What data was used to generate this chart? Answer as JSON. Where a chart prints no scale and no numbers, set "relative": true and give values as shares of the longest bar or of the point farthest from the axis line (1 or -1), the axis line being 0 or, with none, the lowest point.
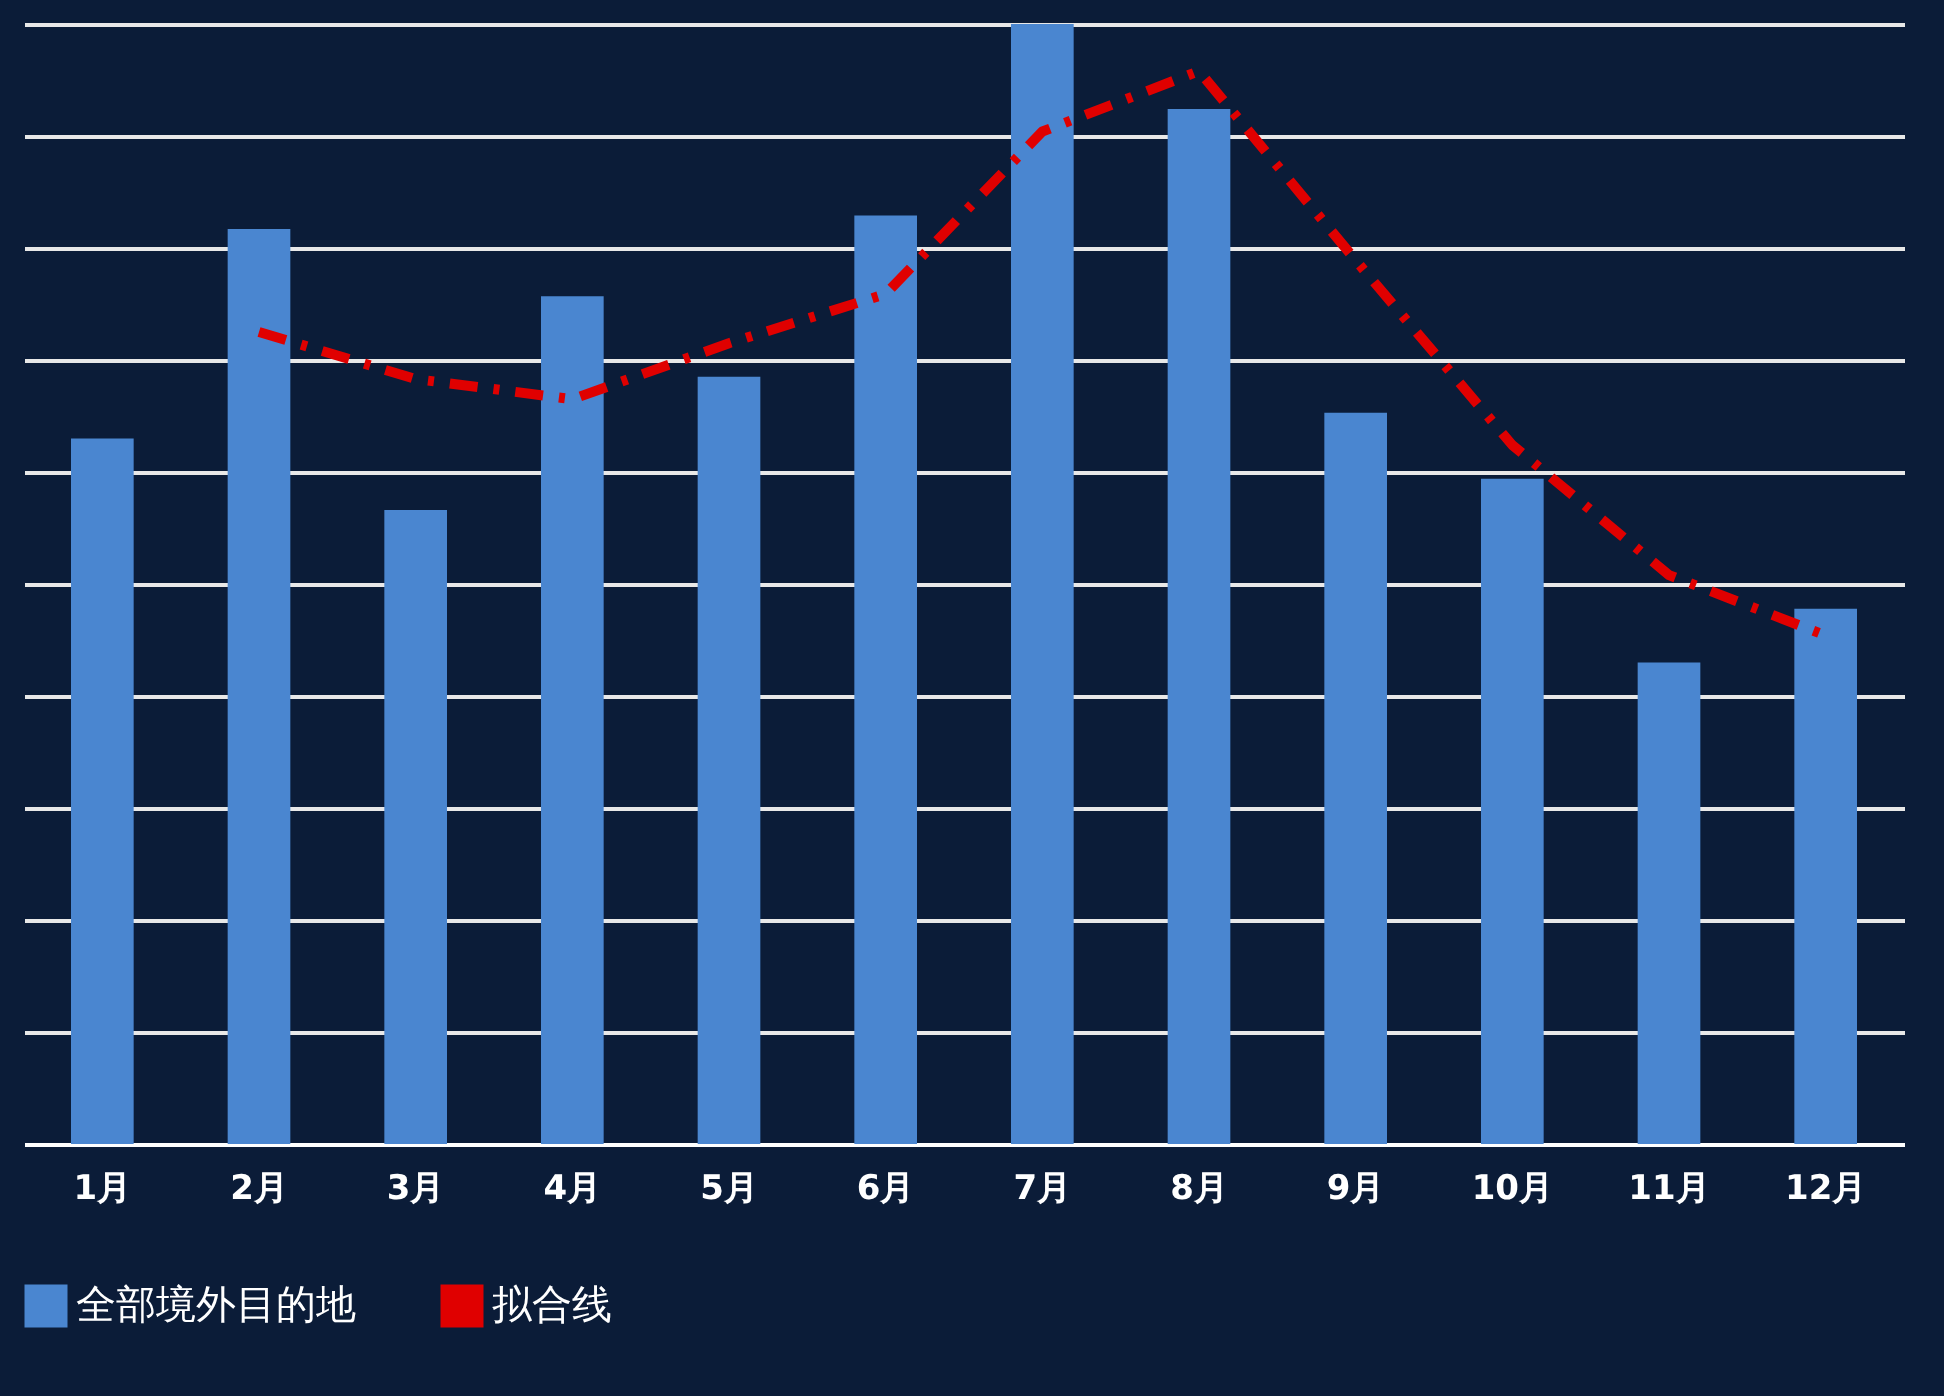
{
  "chart_data": {
    "type": "bar",
    "relative": true,
    "grid": "y",
    "legend": "bottom",
    "categories": [
      "1月",
      "2月",
      "3月",
      "4月",
      "5月",
      "6月",
      "7月",
      "8月",
      "9月",
      "10月",
      "11月",
      "12月"
    ],
    "series": [
      {
        "name": "全部境外目的地",
        "color": "#4a86d0",
        "values": [
          0.63,
          0.817,
          0.566,
          0.757,
          0.685,
          0.829,
          1,
          0.924,
          0.653,
          0.594,
          0.43,
          0.478
        ]
      },
      {
        "name": "拟合线",
        "type": "line",
        "color": "#e00000",
        "line_style": "dashed",
        "values": [
          null,
          0.725,
          0.683,
          0.665,
          0.715,
          0.759,
          0.904,
          0.958,
          0.789,
          0.624,
          0.508,
          0.454
        ]
      }
    ]
  }
}
